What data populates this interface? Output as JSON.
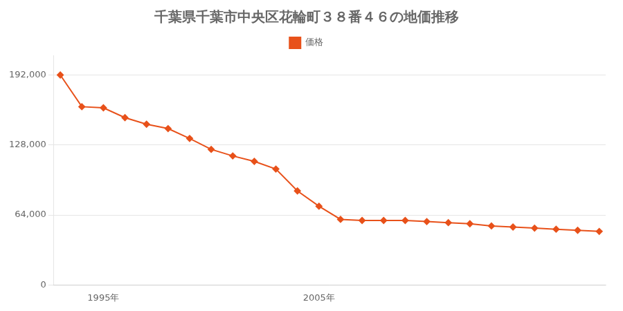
{
  "chart_data": {
    "type": "line",
    "title": "千葉県千葉市中央区花輪町３８番４６の地価推移",
    "x": [
      1993,
      1994,
      1995,
      1996,
      1997,
      1998,
      1999,
      2000,
      2001,
      2002,
      2003,
      2004,
      2005,
      2006,
      2007,
      2008,
      2009,
      2010,
      2011,
      2012,
      2013,
      2014,
      2015,
      2016,
      2017,
      2018
    ],
    "series": [
      {
        "name": "価格",
        "color": "#e8511a",
        "marker": "diamond",
        "values": [
          192000,
          163000,
          162000,
          153000,
          147000,
          143000,
          134000,
          124000,
          118000,
          113000,
          106000,
          86000,
          72000,
          60000,
          59000,
          59000,
          59000,
          58000,
          57000,
          56000,
          54000,
          53000,
          52000,
          51000,
          50000,
          49000
        ]
      }
    ],
    "xlim": [
      1992.7,
      2018.3
    ],
    "xticks": [
      {
        "value": 1995,
        "label": "1995年"
      },
      {
        "value": 2005,
        "label": "2005年"
      }
    ],
    "ylim": [
      0,
      210000
    ],
    "yticks": [
      0,
      {
        "value": 64000,
        "label": "64,000"
      },
      {
        "value": 128000,
        "label": "128,000"
      },
      {
        "value": 192000,
        "label": "192,000"
      }
    ],
    "grid": "y",
    "legend": "top"
  }
}
